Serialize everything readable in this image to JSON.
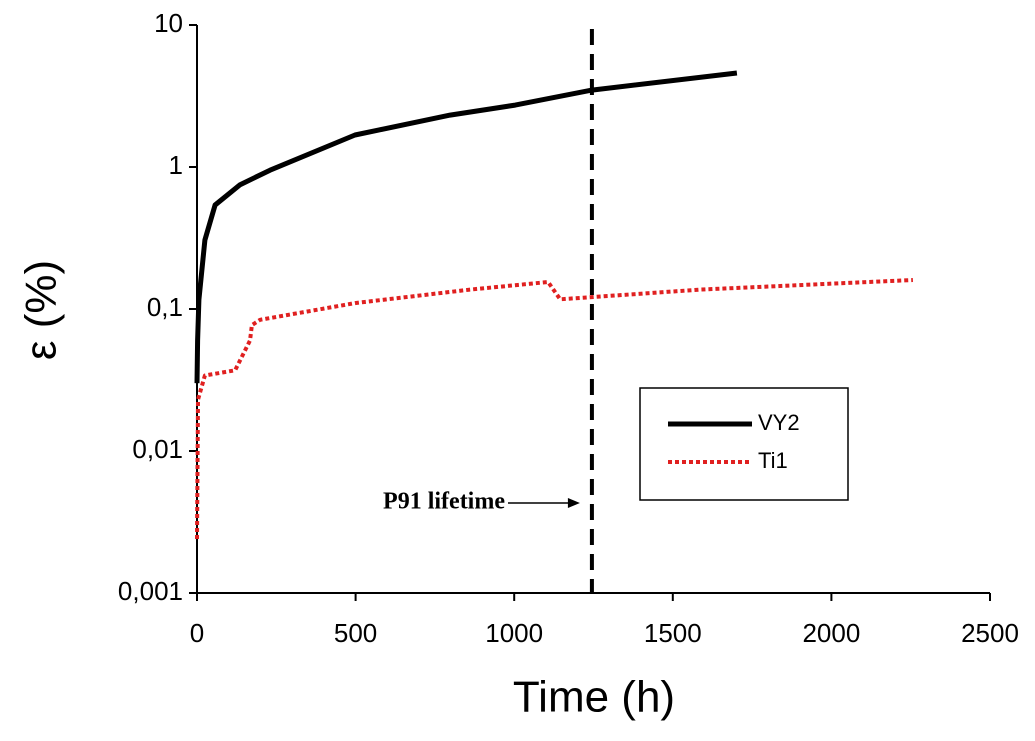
{
  "chart_data": {
    "type": "line",
    "xlabel": "Time (h)",
    "ylabel": "ε (%)",
    "xlim": [
      0,
      2500
    ],
    "xticks": [
      0,
      500,
      1000,
      1500,
      2000,
      2500
    ],
    "ylim": [
      0.001,
      10
    ],
    "ylog": true,
    "yticks": [
      {
        "value": 0.001,
        "label": "0,001"
      },
      {
        "value": 0.01,
        "label": "0,01"
      },
      {
        "value": 0.1,
        "label": "0,1"
      },
      1,
      10
    ],
    "legend": "lower right",
    "series": [
      {
        "name": "VY2",
        "color": "#000000",
        "style": "solid",
        "x": [
          0,
          2,
          6,
          25,
          57,
          136,
          230,
          498,
          798,
          1003,
          1245,
          1702
        ],
        "values": [
          0.03,
          0.06,
          0.116,
          0.306,
          0.54,
          0.75,
          0.95,
          1.68,
          2.32,
          2.73,
          3.48,
          4.59
        ]
      },
      {
        "name": "Ti1",
        "color": "#e02020",
        "style": "dotted",
        "x": [
          0,
          3,
          25,
          120,
          167,
          173,
          199,
          498,
          861,
          1107,
          1145,
          1586,
          2257
        ],
        "values": [
          0.0024,
          0.023,
          0.034,
          0.037,
          0.06,
          0.077,
          0.084,
          0.11,
          0.137,
          0.155,
          0.117,
          0.137,
          0.16
        ]
      }
    ],
    "vline": {
      "x": 1245,
      "label": "P91 lifetime",
      "color": "#000000"
    }
  }
}
